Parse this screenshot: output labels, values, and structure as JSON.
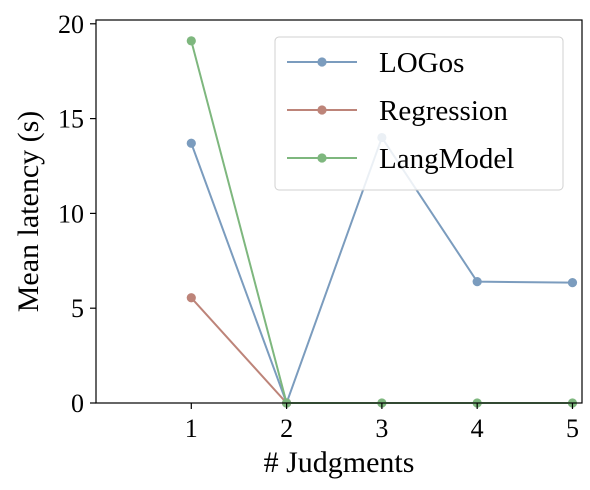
{
  "chart_data": {
    "type": "line",
    "xlabel": "# Judgments",
    "ylabel": "Mean latency (s)",
    "xlim": [
      0,
      5.1
    ],
    "ylim": [
      0,
      20.2
    ],
    "xticks": [
      1,
      2,
      3,
      4,
      5
    ],
    "yticks": [
      0,
      5,
      10,
      15,
      20
    ],
    "grid": false,
    "legend_position": "top-right",
    "series": [
      {
        "name": "LOGos",
        "color": "#7b9cbe",
        "x": [
          1,
          2,
          3,
          4,
          5
        ],
        "y": [
          13.7,
          0.0,
          14.0,
          6.4,
          6.35
        ]
      },
      {
        "name": "Regression",
        "color": "#bd8479",
        "x": [
          1,
          2
        ],
        "y": [
          5.55,
          0.0
        ]
      },
      {
        "name": "LangModel",
        "color": "#7eb77e",
        "x": [
          1,
          2,
          3,
          4,
          5
        ],
        "y": [
          19.1,
          0.0,
          0.0,
          0.0,
          0.0
        ]
      }
    ]
  }
}
